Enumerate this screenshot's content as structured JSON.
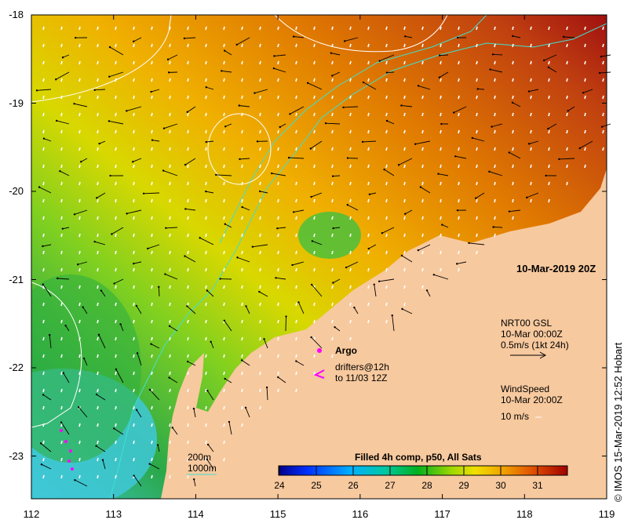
{
  "map": {
    "axes": {
      "lon_ticks": [
        "112",
        "113",
        "114",
        "115",
        "116",
        "117",
        "118",
        "119"
      ],
      "lat_ticks": [
        "-18",
        "-19",
        "-20",
        "-21",
        "-22",
        "-23"
      ]
    },
    "timestamp_label": "10-Mar-2019 20Z",
    "currents_legend": {
      "line1": "NRT00 GSL",
      "line2": "10-Mar 00:00Z",
      "line3": "0.5m/s (1kt 24h)"
    },
    "wind_legend": {
      "line1": "WindSpeed",
      "line2": "10-Mar 20:00Z",
      "line3": "10 m/s"
    },
    "argo_label": "Argo",
    "drifters_label_line1": "drifters@12h",
    "drifters_label_line2": "to 11/03 12Z",
    "isobaths": {
      "shallow": "200m",
      "deep": "1000m"
    },
    "colorbar": {
      "title": "Filled 4h comp, p50, All Sats",
      "ticks": [
        "24",
        "25",
        "26",
        "27",
        "28",
        "29",
        "30",
        "31"
      ],
      "colors": [
        "#00008b",
        "#0000ff",
        "#0080ff",
        "#00c8c8",
        "#00d070",
        "#00b000",
        "#80d000",
        "#e0e000",
        "#f0c000",
        "#f08000",
        "#d04000",
        "#a00000"
      ]
    },
    "credit": "© IMOS 15-Mar-2019 12:52 Hobart",
    "colors": {
      "land": "#f7c99e",
      "isobath": "#40e0d0",
      "argo": "#ff00ff",
      "drifter": "#ff00ff"
    }
  }
}
